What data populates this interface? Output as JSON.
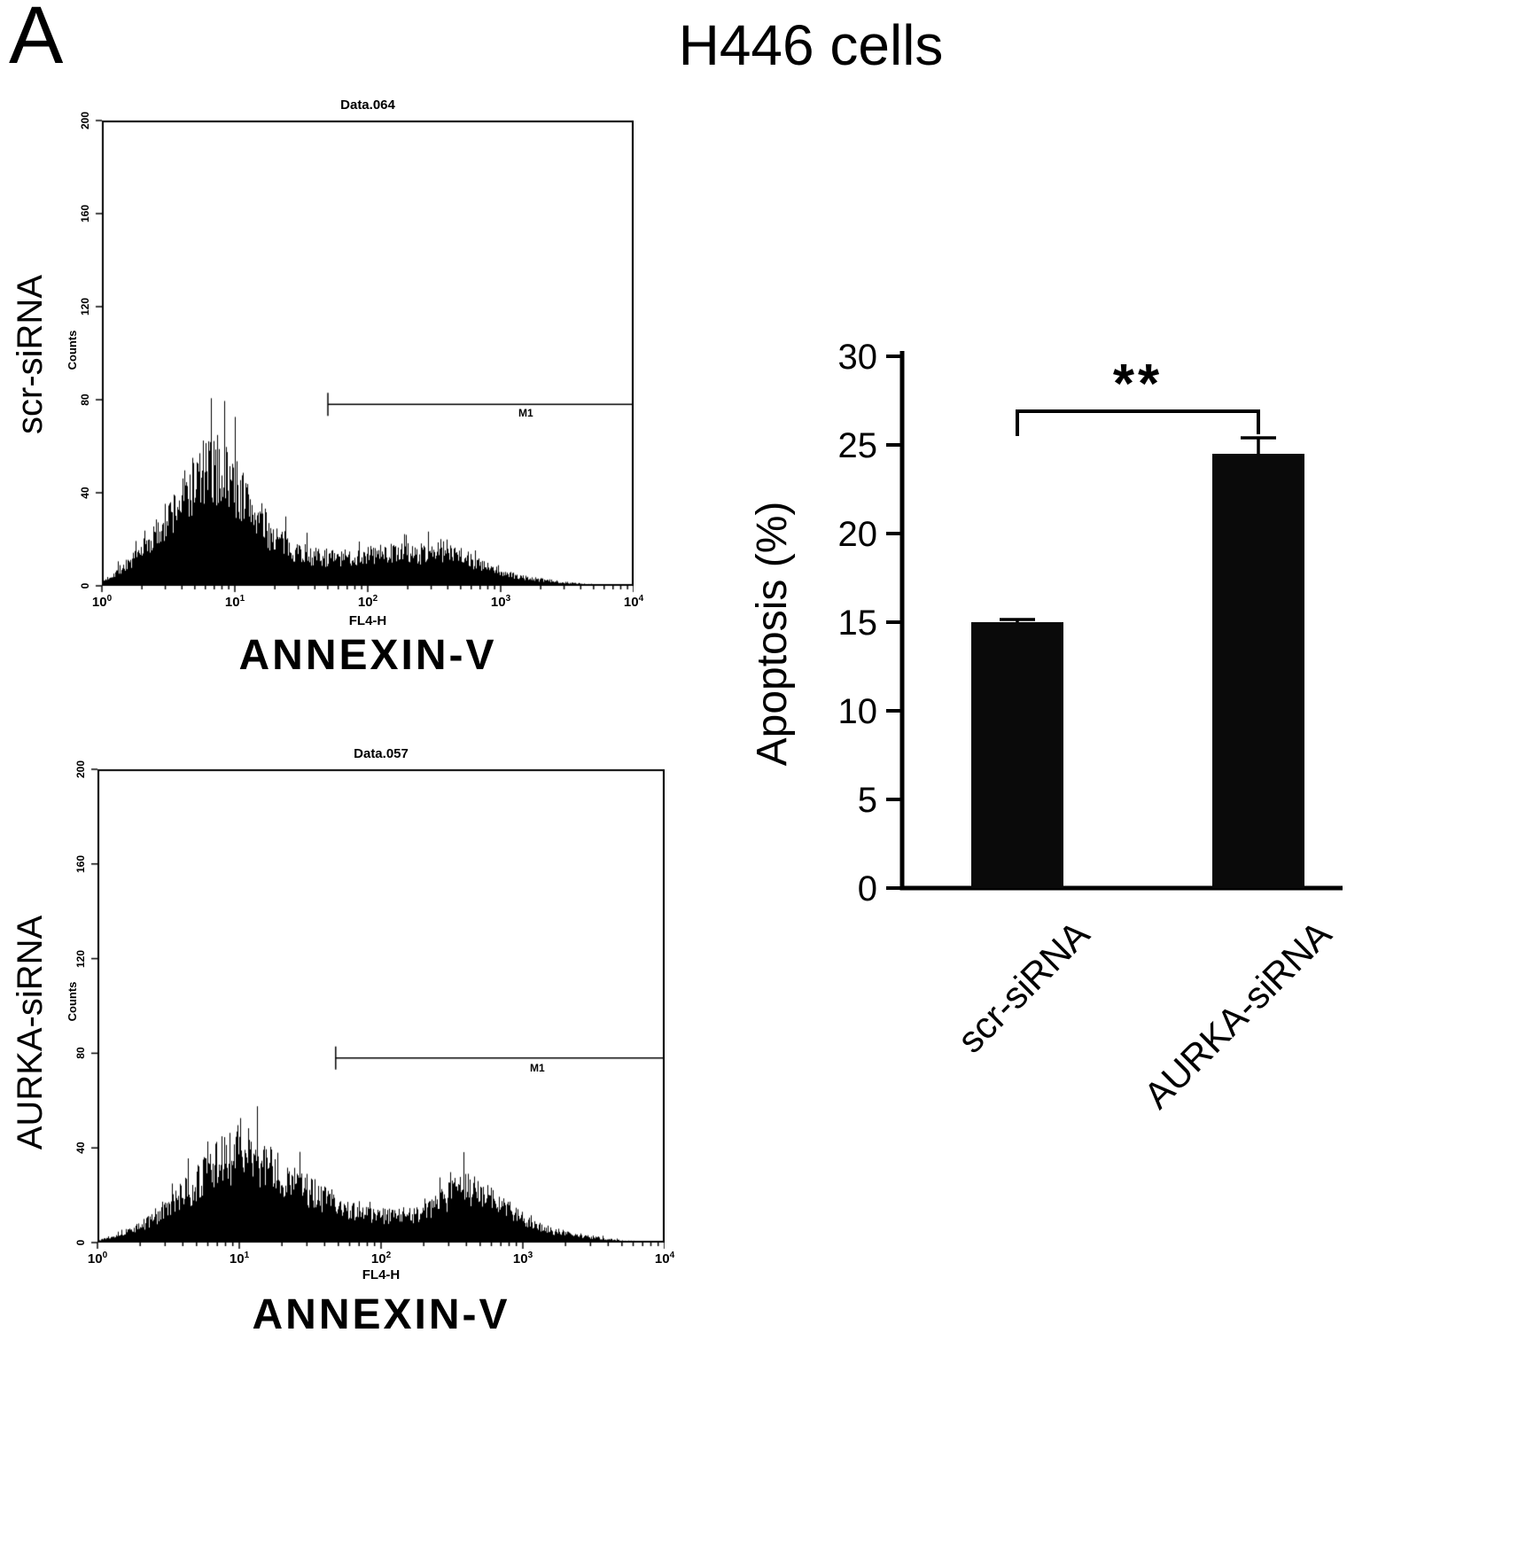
{
  "panel_label": "A",
  "title": "H446 cells",
  "colors": {
    "ink": "#000000",
    "bar": "#0a0a0a",
    "background": "#ffffff"
  },
  "chart_data": [
    {
      "type": "histogram",
      "condition": "scr-siRNA",
      "title": "Data.064",
      "xlabel": "FL4-H",
      "xlabel_secondary": "ANNEXIN-V",
      "ylabel": "Counts",
      "x_scale": "log10",
      "xlim_log10": [
        0,
        4
      ],
      "x_tick_exponents": [
        0,
        1,
        2,
        3,
        4
      ],
      "ylim": [
        0,
        200
      ],
      "y_ticks": [
        0,
        40,
        80,
        120,
        160,
        200
      ],
      "gate": {
        "label": "M1",
        "y_counts": 78,
        "x_start_log10": 1.7,
        "x_end_log10": 4.0
      },
      "profile_log10x_counts": [
        [
          0,
          2
        ],
        [
          0.25,
          14
        ],
        [
          0.45,
          30
        ],
        [
          0.6,
          45
        ],
        [
          0.75,
          58
        ],
        [
          0.9,
          60
        ],
        [
          1.0,
          52
        ],
        [
          1.1,
          42
        ],
        [
          1.25,
          28
        ],
        [
          1.4,
          20
        ],
        [
          1.6,
          15
        ],
        [
          1.8,
          14
        ],
        [
          2.0,
          16
        ],
        [
          2.2,
          17
        ],
        [
          2.35,
          16
        ],
        [
          2.5,
          18
        ],
        [
          2.65,
          19
        ],
        [
          2.8,
          12
        ],
        [
          2.95,
          8
        ],
        [
          3.1,
          5
        ],
        [
          3.3,
          3
        ],
        [
          3.6,
          1
        ],
        [
          3.9,
          0.3
        ],
        [
          4,
          0
        ]
      ]
    },
    {
      "type": "histogram",
      "condition": "AURKA-siRNA",
      "title": "Data.057",
      "xlabel": "FL4-H",
      "xlabel_secondary": "ANNEXIN-V",
      "ylabel": "Counts",
      "x_scale": "log10",
      "xlim_log10": [
        0,
        4
      ],
      "x_tick_exponents": [
        0,
        1,
        2,
        3,
        4
      ],
      "ylim": [
        0,
        200
      ],
      "y_ticks": [
        0,
        40,
        80,
        120,
        160,
        200
      ],
      "gate": {
        "label": "M1",
        "y_counts": 78,
        "x_start_log10": 1.68,
        "x_end_log10": 4.0
      },
      "profile_log10x_counts": [
        [
          0,
          1
        ],
        [
          0.3,
          8
        ],
        [
          0.5,
          18
        ],
        [
          0.7,
          30
        ],
        [
          0.85,
          40
        ],
        [
          1.0,
          46
        ],
        [
          1.1,
          44
        ],
        [
          1.25,
          36
        ],
        [
          1.45,
          28
        ],
        [
          1.65,
          20
        ],
        [
          1.85,
          15
        ],
        [
          2.05,
          13
        ],
        [
          2.25,
          15
        ],
        [
          2.4,
          20
        ],
        [
          2.55,
          27
        ],
        [
          2.65,
          28
        ],
        [
          2.78,
          22
        ],
        [
          2.9,
          16
        ],
        [
          3.05,
          10
        ],
        [
          3.2,
          6
        ],
        [
          3.45,
          3
        ],
        [
          3.7,
          1
        ],
        [
          4,
          0
        ]
      ]
    },
    {
      "type": "bar",
      "categories": [
        "scr-siRNA",
        "AURKA-siRNA"
      ],
      "values": [
        15.0,
        24.5
      ],
      "errors": [
        0.15,
        0.9
      ],
      "ylabel": "Apoptosis (%)",
      "ylim": [
        0,
        30
      ],
      "y_ticks": [
        0,
        5,
        10,
        15,
        20,
        25,
        30
      ],
      "significance": "**",
      "bar_color": "#0a0a0a"
    }
  ]
}
